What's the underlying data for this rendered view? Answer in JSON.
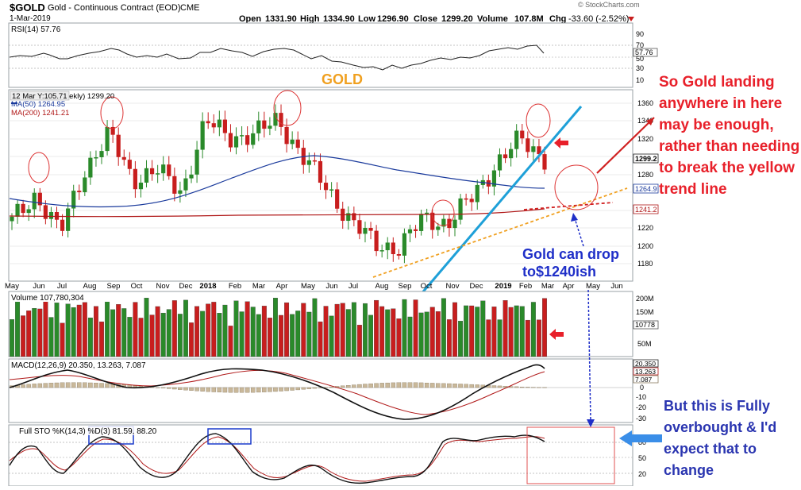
{
  "header": {
    "symbol": "$GOLD",
    "description": "Gold - Continuous Contract (EOD)",
    "exchange": "CME",
    "date": "1-Mar-2019",
    "watermark": "© StockCharts.com",
    "ohlc": {
      "open_label": "Open",
      "open": "1331.90",
      "high_label": "High",
      "high": "1334.90",
      "low_label": "Low",
      "low": "1296.90",
      "close_label": "Close",
      "close": "1299.20",
      "volume_label": "Volume",
      "volume": "107.8M",
      "chg_label": "Chg",
      "chg": "-33.60 (-2.52%)"
    }
  },
  "rsi_panel": {
    "label": "RSI(14) 57.76",
    "current_badge": "57.76",
    "ticks": [
      "90",
      "70",
      "50",
      "30",
      "10"
    ]
  },
  "price_panel": {
    "title": "GOLD",
    "legend_line1": "12 Mar Y:105.71  ekly) 1299.20",
    "legend_ma50": "MA(50) 1264.95",
    "legend_ma200": "MA(200) 1241.21",
    "ticks": [
      "1360",
      "1340",
      "1320",
      "1300",
      "1280",
      "1260",
      "1240",
      "1220",
      "1200",
      "1180"
    ],
    "badges": {
      "close": "1299.2",
      "ma50": "1264.9",
      "ma200": "1241.2"
    }
  },
  "x_axis": {
    "labels": [
      "May",
      "Jun",
      "Jul",
      "Aug",
      "Sep",
      "Oct",
      "Nov",
      "Dec",
      "2018",
      "Feb",
      "Mar",
      "Apr",
      "May",
      "Jun",
      "Jul",
      "Aug",
      "Sep",
      "Oct",
      "Nov",
      "Dec",
      "2019",
      "Feb",
      "Mar",
      "Apr",
      "May",
      "Jun"
    ],
    "bold": [
      "2018",
      "2019"
    ]
  },
  "volume_panel": {
    "label": "Volume 107,780,304",
    "ticks": [
      "200M",
      "150M",
      "50M"
    ],
    "current_badge": "10778"
  },
  "macd_panel": {
    "label": "MACD(12,26,9) 20.350, 13.263, 7.087",
    "badges": [
      "20.350",
      "13.263",
      "7.087"
    ],
    "ticks": [
      "20",
      "10",
      "0",
      "-10",
      "-20",
      "-30"
    ]
  },
  "sto_panel": {
    "label": "Full STO %K(14,3) %D(3) 81.59, 88.20",
    "ticks": [
      "80",
      "50",
      "20"
    ]
  },
  "annotations": {
    "red": "So Gold landing\nanywhere in here\nmay be enough,\nrather than needing\nto break the yellow\ntrend line",
    "blue_drop": "Gold can drop\nto$1240ish",
    "blue_overbought": "But this is Fully\noverbought & I'd\nexpect that to\nchange"
  },
  "colors": {
    "up": "#2a8a2a",
    "down": "#c81e1e",
    "ma50": "#1a3a9c",
    "ma200": "#b01818",
    "uptrend": "#1ea0d8",
    "yellow_trend": "#f0a020",
    "annot_red": "#e8202a",
    "annot_blue": "#1f2fc8",
    "sto_blue_arrow": "#3a8ee8"
  },
  "chart_data": {
    "type": "line",
    "title": "$GOLD Gold - Continuous Contract (EOD)",
    "interval": "weekly",
    "x_range": [
      "May 2017",
      "Jun 2019"
    ],
    "price": {
      "ylim": [
        1170,
        1370
      ],
      "x": [
        "2017-05",
        "2017-06",
        "2017-07",
        "2017-08",
        "2017-09",
        "2017-10",
        "2017-11",
        "2017-12",
        "2018-01",
        "2018-02",
        "2018-03",
        "2018-04",
        "2018-05",
        "2018-06",
        "2018-07",
        "2018-08",
        "2018-09",
        "2018-10",
        "2018-11",
        "2018-12",
        "2019-01",
        "2019-02",
        "2019-03"
      ],
      "close_approx": [
        1228,
        1258,
        1215,
        1285,
        1325,
        1275,
        1285,
        1260,
        1340,
        1322,
        1325,
        1342,
        1300,
        1265,
        1228,
        1202,
        1198,
        1232,
        1225,
        1255,
        1292,
        1320,
        1299
      ],
      "ma50_approx": [
        1232,
        1234,
        1234,
        1236,
        1240,
        1246,
        1252,
        1258,
        1268,
        1276,
        1282,
        1290,
        1296,
        1292,
        1282,
        1272,
        1264,
        1258,
        1254,
        1252,
        1256,
        1262,
        1265
      ],
      "ma200_approx": [
        1240,
        1240,
        1240,
        1240,
        1240,
        1240,
        1240,
        1240,
        1241,
        1241,
        1241,
        1241,
        1241,
        1241,
        1240,
        1240,
        1240,
        1240,
        1240,
        1240,
        1241,
        1241,
        1241
      ]
    },
    "rsi": {
      "ylim": [
        0,
        100
      ],
      "last": 57.76
    },
    "macd": {
      "macd": 20.35,
      "signal": 13.263,
      "histogram": 7.087,
      "ylim": [
        -35,
        25
      ]
    },
    "stochastic": {
      "k": 81.59,
      "d": 88.2,
      "ylim": [
        0,
        100
      ]
    },
    "volume_last": 107780304
  }
}
